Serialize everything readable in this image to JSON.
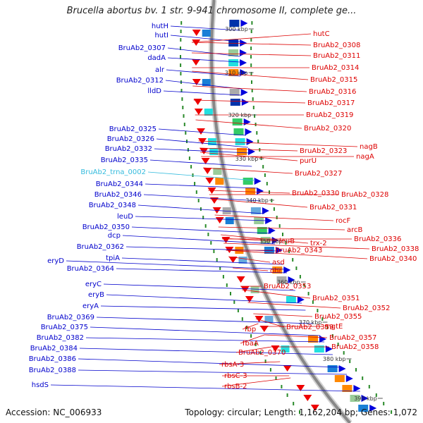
{
  "title": "Brucella abortus bv. 1 str. 9-941 chromosome II, complete ge...",
  "footer": {
    "accession": "Accession: NC_006933",
    "summary": "Topology: circular; Length: 1,162,204 bp; Genes: 1,072"
  },
  "colors": {
    "left_labels": "#0000cc",
    "right_labels": "#dd0000",
    "trna_label": "#33bbdd",
    "backbone": "#888888",
    "tick": "#2a8a2a"
  },
  "scale_labels": [
    "300 kbp",
    "310 kbp",
    "320 kbp",
    "330 kbp",
    "340 kbp",
    "350 kbp",
    "360 kbp",
    "370 kbp",
    "380 kbp",
    "390 kbp"
  ],
  "left_labels": [
    "hutH",
    "hutI",
    "BruAb2_0307",
    "dadA",
    "alr",
    "BruAb2_0312",
    "lldD",
    "BruAb2_0325",
    "BruAb2_0326",
    "BruAb2_0332",
    "BruAb2_0335",
    "BruAb2_trna_0002",
    "BruAb2_0344",
    "BruAb2_0346",
    "BruAb2_0348",
    "leuD",
    "BruAb2_0350",
    "dcp",
    "BruAb2_0362",
    "tpiA",
    "eryD",
    "BruAb2_0364",
    "eryC",
    "eryB",
    "eryA",
    "BruAb2_0369",
    "BruAb2_0375",
    "BruAb2_0382",
    "BruAb2_0384",
    "BruAb2_0386",
    "BruAb2_0388",
    "hsdS"
  ],
  "right_labels": [
    "hutC",
    "BruAb2_0308",
    "BruAb2_0311",
    "BruAb2_0314",
    "BruAb2_0315",
    "BruAb2_0316",
    "BruAb2_0317",
    "BruAb2_0319",
    "BruAb2_0320",
    "nagB",
    "BruAb2_0323",
    "nagA",
    "purU",
    "BruAb2_0327",
    "BruAb2_0330",
    "BruAb2_0328",
    "BruAb2_0331",
    "rocF",
    "arcB",
    "BruAb2_0336",
    "trx-2",
    "BruAb2_0338",
    "leuB",
    "BruAb2_0343",
    "BruAb2_0340",
    "asd",
    "ohr",
    "BruAb2_0353",
    "BruAb2_0351",
    "BruAb2_0352",
    "BruAb2_0355",
    "mgtE",
    "BruAb2_0359",
    "fbp",
    "BruAb2_0357",
    "BruAb2_0358",
    "fbaA",
    "BruAb2_0370",
    "rbsA-3",
    "rbsC-3",
    "rbsB-2"
  ]
}
